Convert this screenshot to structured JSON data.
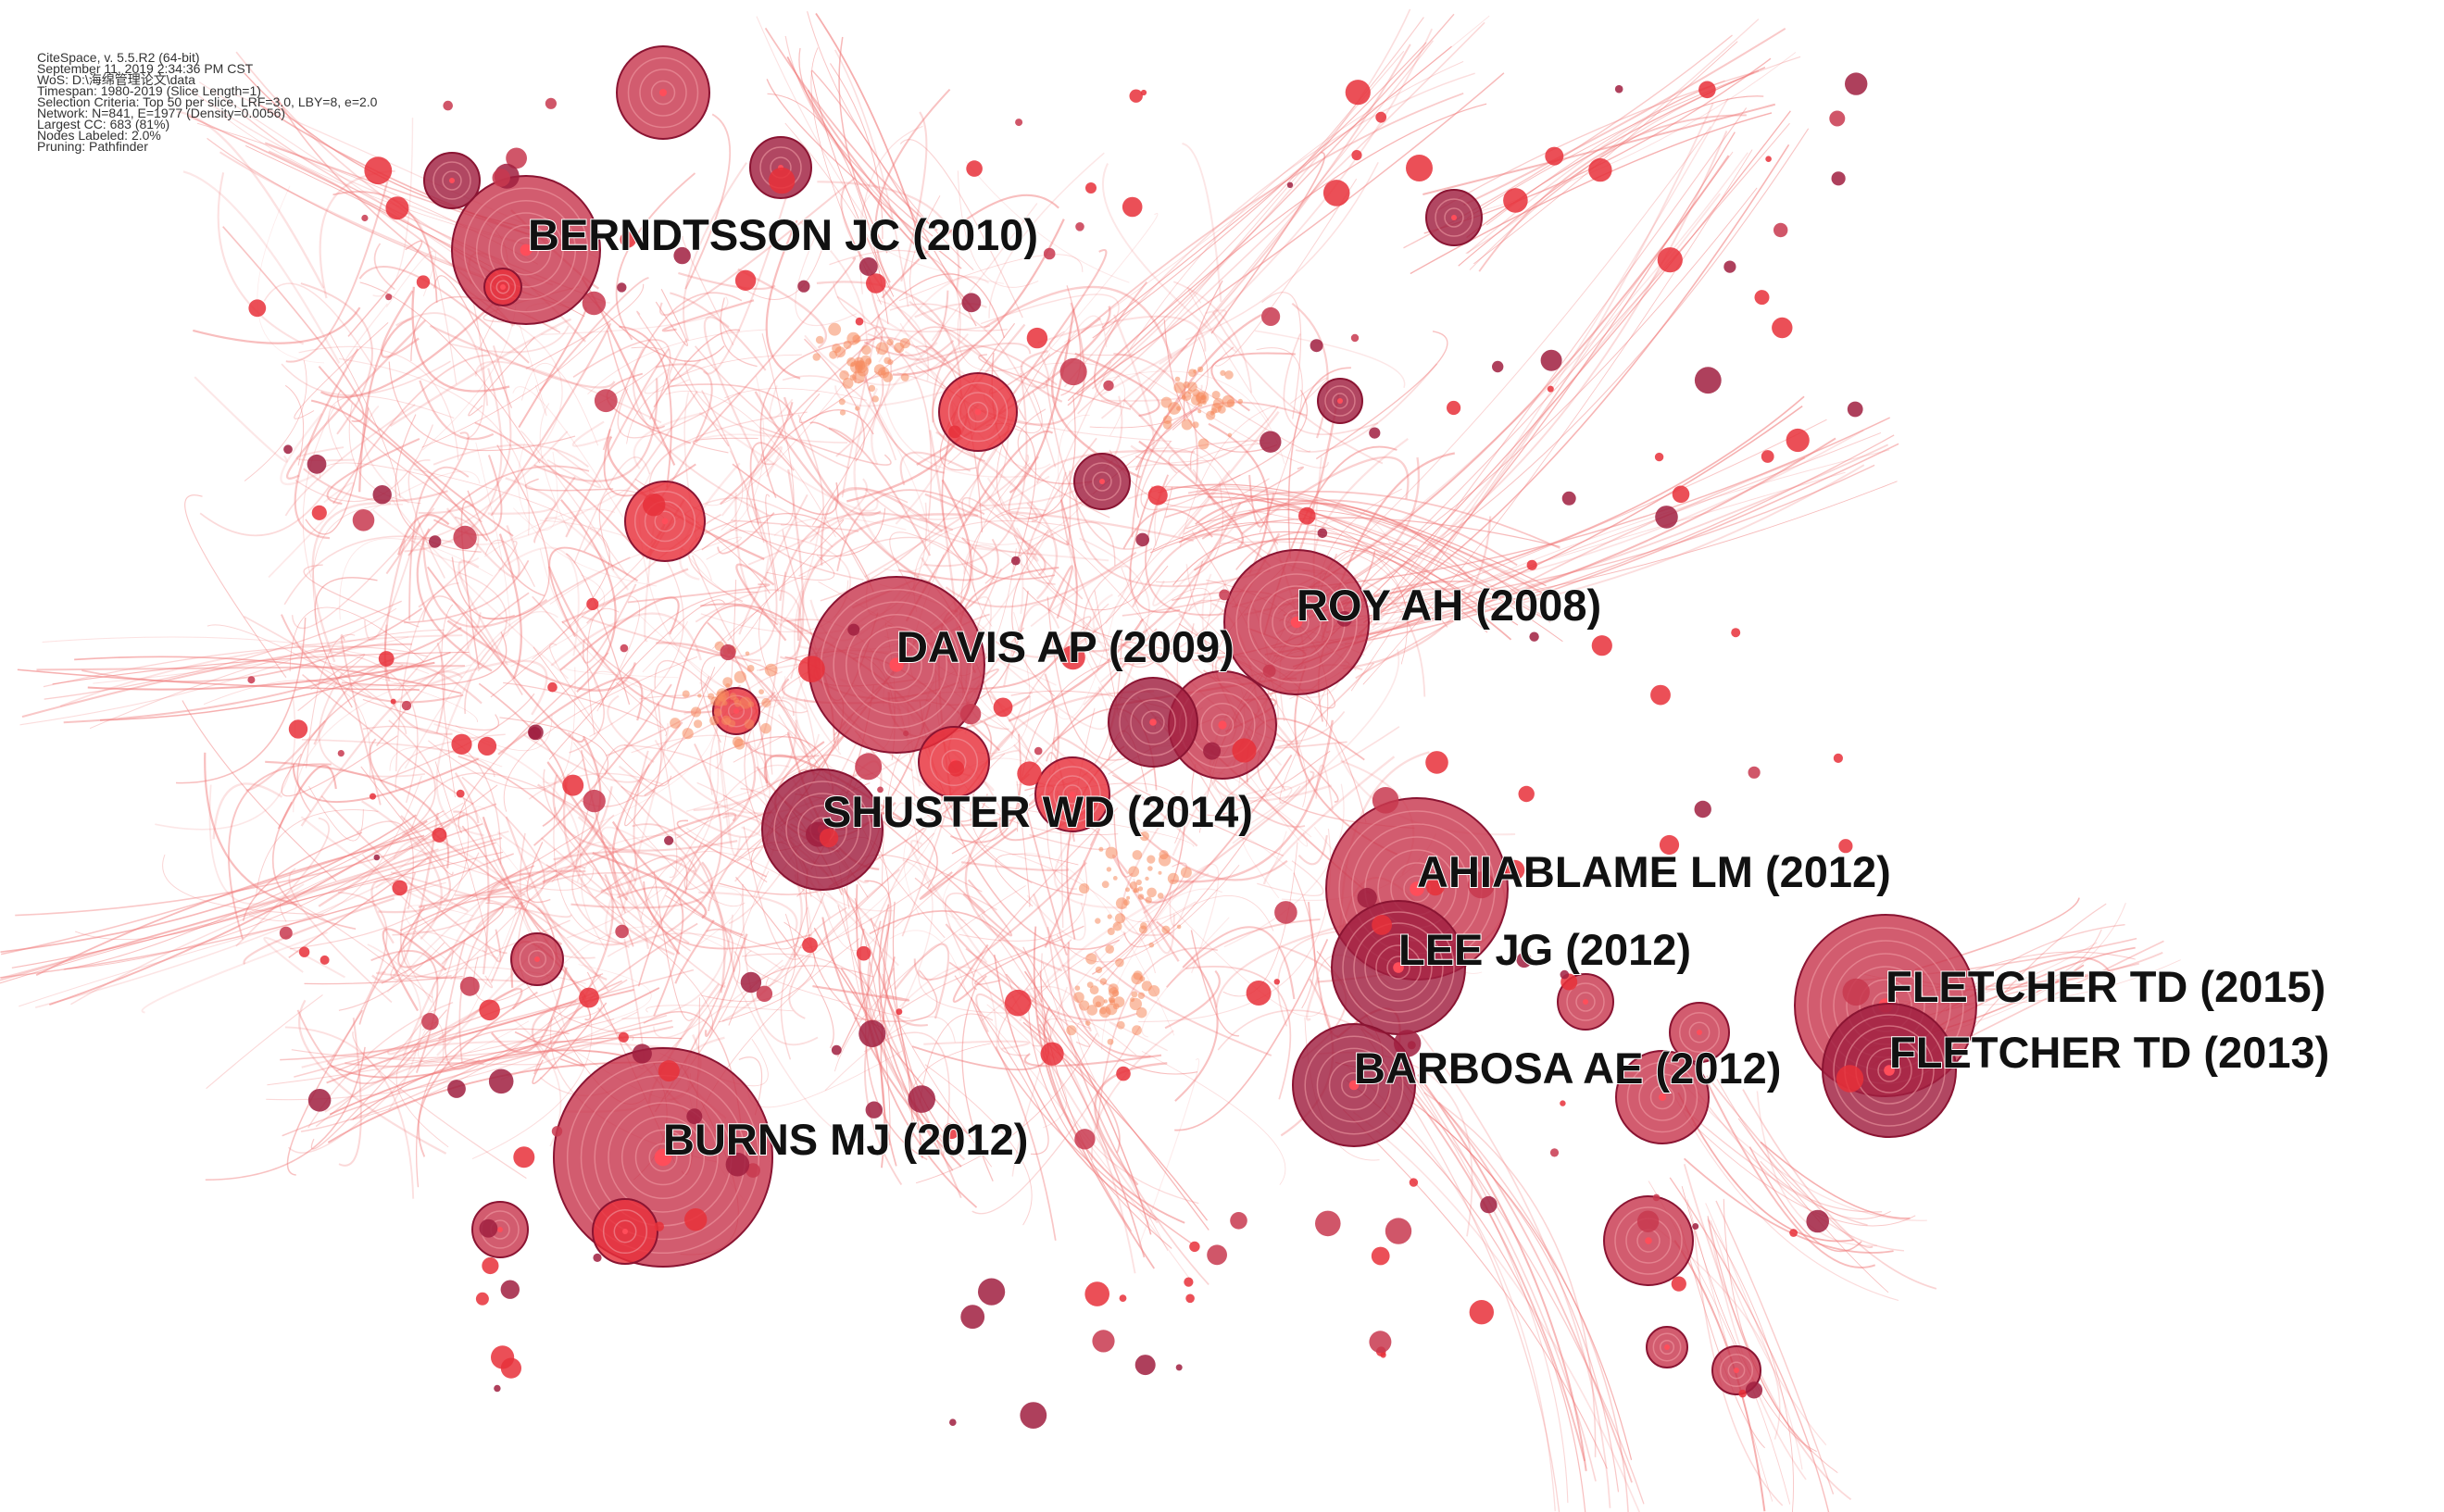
{
  "info": {
    "lines": [
      "CiteSpace, v. 5.5.R2 (64-bit)",
      "September 11, 2019 2:34:36 PM CST",
      "WoS: D:\\海绵管理论文\\data",
      "Timespan: 1980-2019 (Slice Length=1)",
      "Selection Criteria: Top 50 per slice, LRF=3.0, LBY=8, e=2.0",
      "Network: N=841, E=1977 (Density=0.0056)",
      "Largest CC: 683 (81%)",
      "Nodes Labeled: 2.0%",
      "Pruning: Pathfinder"
    ]
  },
  "labels": [
    "BERNDTSSON JC (2010)",
    "ROY AH (2008)",
    "DAVIS AP (2009)",
    "SHUSTER WD (2014)",
    "AHIABLAME LM (2012)",
    "LEE JG (2012)",
    "FLETCHER TD (2015)",
    "FLETCHER TD (2013)",
    "BARBOSA AE (2012)",
    "BURNS MJ (2012)"
  ],
  "colors": {
    "node_dark": "#a01e40",
    "node_mid": "#c8384f",
    "node_bright": "#e8303a",
    "node_orange": "#f58a5e",
    "edge": "#f07878",
    "ring": "#f2a0a8"
  }
}
